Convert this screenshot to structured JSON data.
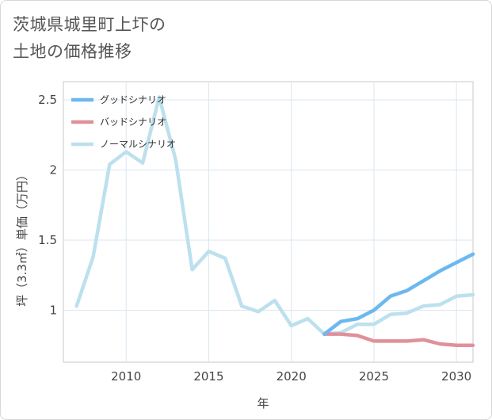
{
  "title": {
    "line1": "茨城県城里町上圷の",
    "line2": "土地の価格推移"
  },
  "chart_data": {
    "type": "line",
    "xlabel": "年",
    "ylabel": "坪（3.3㎡）単価（万円）",
    "xlim": [
      2006.2,
      2031
    ],
    "ylim": [
      0.63,
      2.63
    ],
    "x_ticks": [
      2010,
      2015,
      2020,
      2025,
      2030
    ],
    "y_ticks": [
      1,
      1.5,
      2,
      2.5
    ],
    "y_tick_labels": [
      "1",
      "1.5",
      "2",
      "2.5"
    ],
    "grid": true,
    "legend_position": "top-left",
    "series": [
      {
        "name": "グッドシナリオ",
        "color": "#6cb8f0",
        "x": [
          2022,
          2023,
          2024,
          2025,
          2026,
          2027,
          2028,
          2029,
          2030,
          2031
        ],
        "y": [
          0.83,
          0.92,
          0.94,
          1.0,
          1.1,
          1.14,
          1.21,
          1.28,
          1.34,
          1.4
        ]
      },
      {
        "name": "バッドシナリオ",
        "color": "#e0909a",
        "x": [
          2022,
          2023,
          2024,
          2025,
          2026,
          2027,
          2028,
          2029,
          2030,
          2031
        ],
        "y": [
          0.83,
          0.83,
          0.82,
          0.78,
          0.78,
          0.78,
          0.79,
          0.76,
          0.75,
          0.75
        ]
      },
      {
        "name": "ノーマルシナリオ",
        "color": "#bde0ee",
        "x": [
          2007,
          2008,
          2009,
          2010,
          2011,
          2012,
          2013,
          2014,
          2015,
          2016,
          2017,
          2018,
          2019,
          2020,
          2021,
          2022,
          2023,
          2024,
          2025,
          2026,
          2027,
          2028,
          2029,
          2030,
          2031
        ],
        "y": [
          1.03,
          1.38,
          2.04,
          2.13,
          2.05,
          2.52,
          2.07,
          1.29,
          1.42,
          1.37,
          1.03,
          0.99,
          1.07,
          0.89,
          0.94,
          0.83,
          0.84,
          0.9,
          0.9,
          0.97,
          0.98,
          1.03,
          1.04,
          1.1,
          1.11
        ]
      }
    ]
  }
}
